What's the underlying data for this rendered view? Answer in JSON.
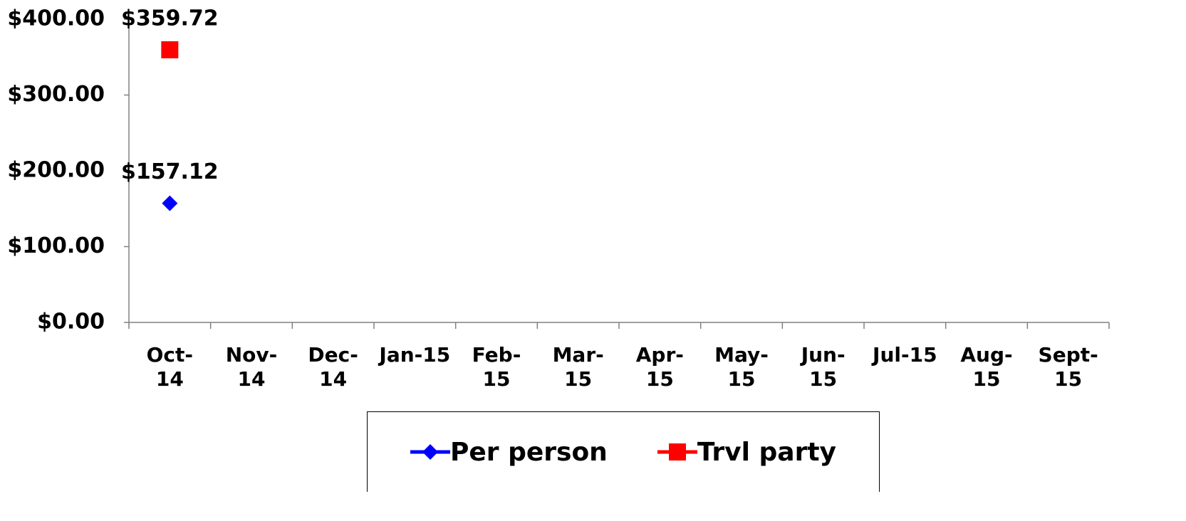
{
  "chart_data": {
    "type": "line",
    "categories": [
      "Oct-14",
      "Nov-14",
      "Dec-14",
      "Jan-15",
      "Feb-15",
      "Mar-15",
      "Apr-15",
      "May-15",
      "Jun-15",
      "Jul-15",
      "Aug-15",
      "Sept-15"
    ],
    "series": [
      {
        "name": "Per person",
        "color": "#0000ff",
        "marker": "diamond",
        "values": [
          157.12,
          null,
          null,
          null,
          null,
          null,
          null,
          null,
          null,
          null,
          null,
          null
        ],
        "value_labels": [
          "$157.12",
          null,
          null,
          null,
          null,
          null,
          null,
          null,
          null,
          null,
          null,
          null
        ]
      },
      {
        "name": "Trvl party",
        "color": "#ff0000",
        "marker": "square",
        "values": [
          359.72,
          null,
          null,
          null,
          null,
          null,
          null,
          null,
          null,
          null,
          null,
          null
        ],
        "value_labels": [
          "$359.72",
          null,
          null,
          null,
          null,
          null,
          null,
          null,
          null,
          null,
          null,
          null
        ]
      }
    ],
    "ylim": [
      0,
      400
    ],
    "yticks": [
      {
        "value": 0,
        "label": "$0.00"
      },
      {
        "value": 100,
        "label": "$100.00"
      },
      {
        "value": 200,
        "label": "$200.00"
      },
      {
        "value": 300,
        "label": "$300.00"
      },
      {
        "value": 400,
        "label": "$400.00"
      }
    ],
    "legend": "bottom"
  }
}
